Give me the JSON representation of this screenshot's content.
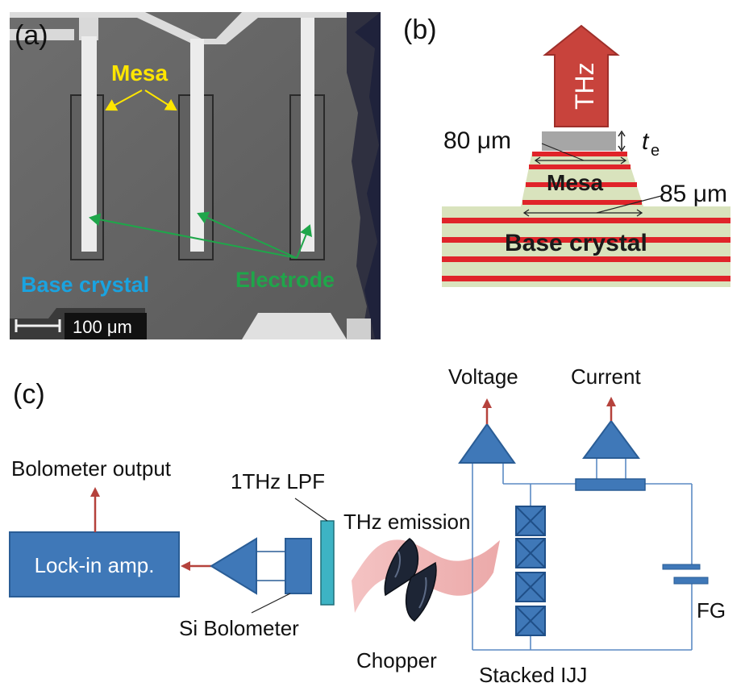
{
  "panel_a": {
    "panel_label": "(a)",
    "mesa_label": "Mesa",
    "base_label": "Base crystal",
    "electrode_label": "Electrode",
    "scale_label": "100 μm"
  },
  "panel_b": {
    "panel_label": "(b)",
    "thz_label": "THz",
    "top_width": "80 μm",
    "bottom_width": "85 μm",
    "thickness_symbol": "t",
    "thickness_subscript": "e",
    "mesa_label": "Mesa",
    "base_label": "Base crystal"
  },
  "panel_c": {
    "panel_label": "(c)",
    "voltage_label": "Voltage",
    "current_label": "Current",
    "bolometer_output_label": "Bolometer output",
    "lpf_label": "1THz LPF",
    "thz_emission_label": "THz emission",
    "lockin_label": "Lock-in amp.",
    "si_bolometer_label": "Si Bolometer",
    "chopper_label": "Chopper",
    "stacked_ijj_label": "Stacked IJJ",
    "fg_label": "FG"
  },
  "colors": {
    "blue_fill": "#3f78b8",
    "blue_stroke": "#2a5d96",
    "arrow_red": "#b5423c",
    "stripe_red": "#e0242a",
    "stripe_green": "#d9e3bd",
    "mesa_label_yellow": "#ffe600",
    "base_label_cyan": "#1aa3e0",
    "electrode_label_green": "#1fa64a"
  }
}
